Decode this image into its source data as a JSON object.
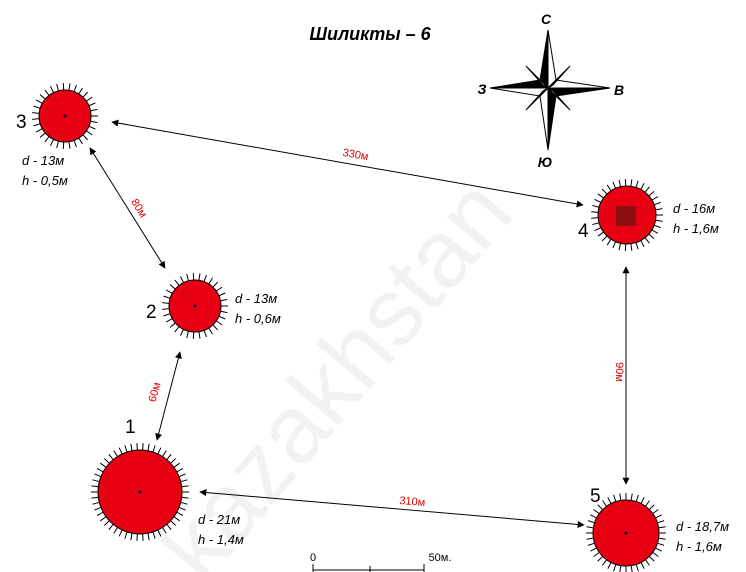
{
  "title": "Шиликты – 6",
  "compass": {
    "north": "С",
    "west": "З",
    "east": "В",
    "south": "Ю"
  },
  "mounds": [
    {
      "number": "1",
      "d": "d - 21м",
      "h": "h - 1,4м"
    },
    {
      "number": "2",
      "d": "d - 13м",
      "h": "h - 0,6м"
    },
    {
      "number": "3",
      "d": "d - 13м",
      "h": "h - 0,5м"
    },
    {
      "number": "4",
      "d": "d - 16м",
      "h": "h - 1,6м"
    },
    {
      "number": "5",
      "d": "d - 18,7м",
      "h": "h - 1,6м"
    }
  ],
  "distances": [
    {
      "label": "330м"
    },
    {
      "label": "80м"
    },
    {
      "label": "60м"
    },
    {
      "label": "90м"
    },
    {
      "label": "310м"
    }
  ],
  "scale": {
    "start": "0",
    "end": "50м."
  },
  "watermark": "kazakhstan"
}
